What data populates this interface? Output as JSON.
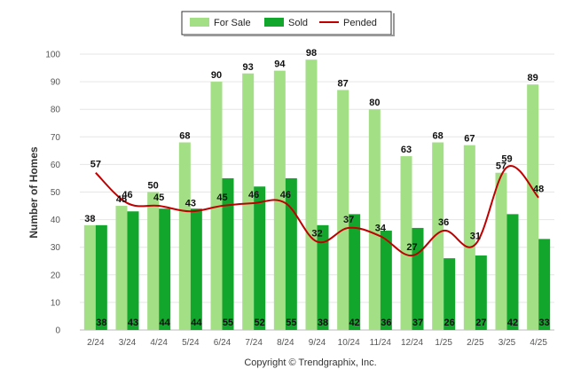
{
  "chart_data": {
    "type": "bar",
    "categories": [
      "2/24",
      "3/24",
      "4/24",
      "5/24",
      "6/24",
      "7/24",
      "8/24",
      "9/24",
      "10/24",
      "11/24",
      "12/24",
      "1/25",
      "2/25",
      "3/25",
      "4/25"
    ],
    "series": [
      {
        "name": "For Sale",
        "type": "bar",
        "color": "#a3df85",
        "values": [
          38,
          45,
          50,
          68,
          90,
          93,
          94,
          98,
          87,
          80,
          63,
          68,
          67,
          57,
          89
        ]
      },
      {
        "name": "Sold",
        "type": "bar",
        "color": "#12a62c",
        "values": [
          38,
          43,
          44,
          44,
          55,
          52,
          55,
          38,
          42,
          36,
          37,
          26,
          27,
          42,
          33
        ]
      },
      {
        "name": "Pended",
        "type": "line",
        "color": "#c00000",
        "values": [
          57,
          46,
          45,
          43,
          45,
          46,
          46,
          32,
          37,
          34,
          27,
          36,
          31,
          59,
          48
        ]
      }
    ],
    "ylabel": "Number of Homes",
    "ylim": [
      0,
      100
    ],
    "yticks": [
      0,
      10,
      20,
      30,
      40,
      50,
      60,
      70,
      80,
      90,
      100
    ],
    "legend_position": "top-center",
    "grid": true
  },
  "footer": {
    "copyright": "Copyright © Trendgraphix, Inc."
  }
}
